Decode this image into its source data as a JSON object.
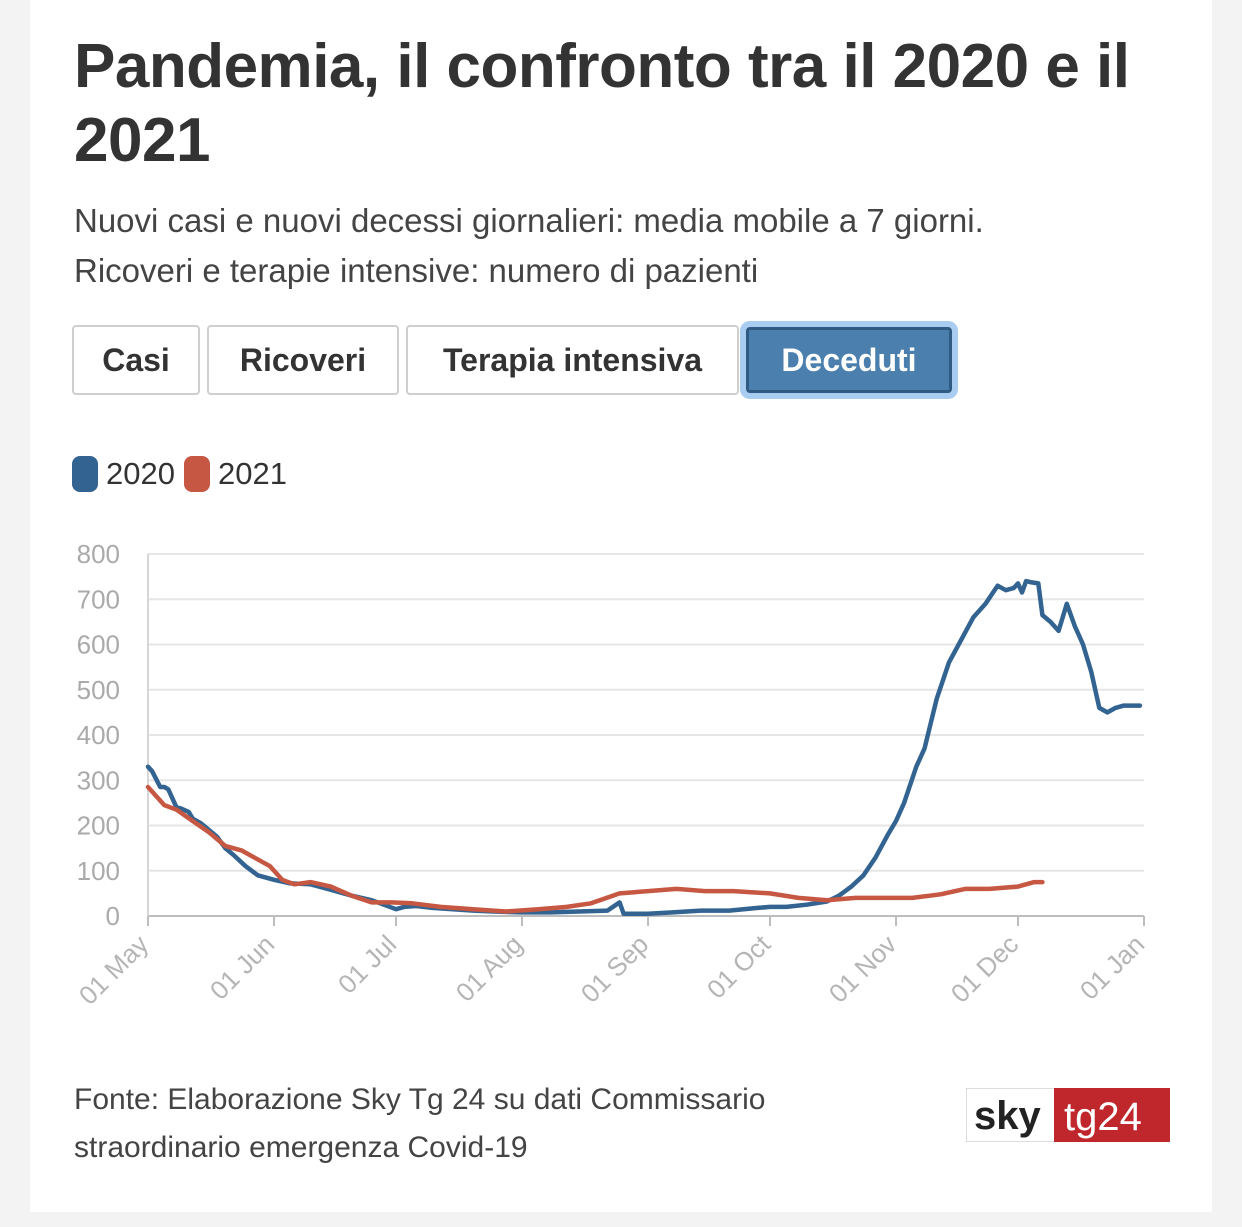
{
  "title": "Pandemia, il confronto tra il 2020 e il 2021",
  "subtitle_line1": "Nuovi casi e nuovi decessi giornalieri: media mobile a 7 giorni.",
  "subtitle_line2": "Ricoveri e terapie intensive: numero di pazienti",
  "tabs": [
    {
      "label": "Casi",
      "active": false
    },
    {
      "label": "Ricoveri",
      "active": false
    },
    {
      "label": "Terapia intensiva",
      "active": false
    },
    {
      "label": "Deceduti",
      "active": true
    }
  ],
  "footer": {
    "line1": "Fonte: Elaborazione Sky Tg 24 su dati Commissario",
    "line2": "straordinario emergenza Covid-19"
  },
  "logo": {
    "left_text": "sky",
    "right_text": "tg24",
    "right_color": "#c0272d"
  },
  "colors": {
    "accent_tab": "#4a7fae",
    "series_2020": "#336491",
    "series_2021": "#c65843"
  },
  "chart_data": {
    "type": "line",
    "xlabel": "",
    "ylabel": "",
    "ylim": [
      0,
      800
    ],
    "yticks": [
      0,
      100,
      200,
      300,
      400,
      500,
      600,
      700,
      800
    ],
    "xlim": [
      "2020-05-01",
      "2021-01-01"
    ],
    "xtick_labels": [
      "01 May",
      "01 Jun",
      "01 Jul",
      "01 Aug",
      "01 Sep",
      "01 Oct",
      "01 Nov",
      "01 Dec",
      "01 Jan"
    ],
    "grid": true,
    "legend_position": "top-left",
    "series": [
      {
        "name": "2020",
        "color": "#336491",
        "x": [
          "2020-05-01",
          "2020-05-02",
          "2020-05-04",
          "2020-05-05",
          "2020-05-06",
          "2020-05-08",
          "2020-05-09",
          "2020-05-11",
          "2020-05-12",
          "2020-05-14",
          "2020-05-16",
          "2020-05-18",
          "2020-05-20",
          "2020-05-22",
          "2020-05-25",
          "2020-05-28",
          "2020-06-01",
          "2020-06-05",
          "2020-06-10",
          "2020-06-15",
          "2020-06-20",
          "2020-06-25",
          "2020-06-28",
          "2020-07-01",
          "2020-07-03",
          "2020-07-06",
          "2020-07-10",
          "2020-07-15",
          "2020-07-20",
          "2020-07-25",
          "2020-08-01",
          "2020-08-08",
          "2020-08-15",
          "2020-08-22",
          "2020-08-25",
          "2020-08-26",
          "2020-08-27",
          "2020-09-01",
          "2020-09-07",
          "2020-09-14",
          "2020-09-21",
          "2020-09-28",
          "2020-10-01",
          "2020-10-05",
          "2020-10-10",
          "2020-10-15",
          "2020-10-18",
          "2020-10-21",
          "2020-10-24",
          "2020-10-27",
          "2020-10-30",
          "2020-11-01",
          "2020-11-03",
          "2020-11-06",
          "2020-11-08",
          "2020-11-11",
          "2020-11-14",
          "2020-11-17",
          "2020-11-20",
          "2020-11-23",
          "2020-11-26",
          "2020-11-28",
          "2020-11-30",
          "2020-12-01",
          "2020-12-02",
          "2020-12-03",
          "2020-12-04",
          "2020-12-06",
          "2020-12-07",
          "2020-12-09",
          "2020-12-11",
          "2020-12-13",
          "2020-12-15",
          "2020-12-16",
          "2020-12-17",
          "2020-12-19",
          "2020-12-21",
          "2020-12-23",
          "2020-12-25",
          "2020-12-27",
          "2020-12-29",
          "2020-12-31"
        ],
        "values": [
          330,
          320,
          285,
          285,
          280,
          240,
          238,
          230,
          215,
          205,
          190,
          175,
          150,
          135,
          110,
          90,
          80,
          72,
          70,
          58,
          45,
          35,
          25,
          15,
          20,
          22,
          18,
          15,
          12,
          10,
          8,
          8,
          10,
          12,
          30,
          5,
          5,
          5,
          8,
          12,
          12,
          18,
          20,
          20,
          25,
          32,
          45,
          65,
          90,
          130,
          180,
          210,
          250,
          330,
          370,
          480,
          560,
          610,
          660,
          690,
          730,
          720,
          725,
          735,
          715,
          740,
          738,
          735,
          665,
          650,
          630,
          690,
          640,
          620,
          600,
          540,
          460,
          450,
          460,
          465,
          465,
          465
        ]
      },
      {
        "name": "2021",
        "color": "#c65843",
        "x": [
          "2020-05-01",
          "2020-05-05",
          "2020-05-08",
          "2020-05-12",
          "2020-05-16",
          "2020-05-20",
          "2020-05-24",
          "2020-05-27",
          "2020-05-31",
          "2020-06-03",
          "2020-06-06",
          "2020-06-10",
          "2020-06-15",
          "2020-06-20",
          "2020-06-25",
          "2020-06-30",
          "2020-07-05",
          "2020-07-12",
          "2020-07-20",
          "2020-07-28",
          "2020-08-05",
          "2020-08-12",
          "2020-08-18",
          "2020-08-25",
          "2020-09-01",
          "2020-09-08",
          "2020-09-15",
          "2020-09-22",
          "2020-10-01",
          "2020-10-08",
          "2020-10-15",
          "2020-10-22",
          "2020-10-29",
          "2020-11-05",
          "2020-11-12",
          "2020-11-18",
          "2020-11-24",
          "2020-12-01",
          "2020-12-05",
          "2020-12-07"
        ],
        "values": [
          285,
          245,
          235,
          210,
          185,
          155,
          145,
          130,
          110,
          80,
          70,
          75,
          65,
          45,
          30,
          30,
          28,
          20,
          15,
          10,
          15,
          20,
          28,
          50,
          55,
          60,
          55,
          55,
          50,
          40,
          35,
          40,
          40,
          40,
          48,
          60,
          60,
          65,
          75,
          75
        ]
      }
    ]
  }
}
